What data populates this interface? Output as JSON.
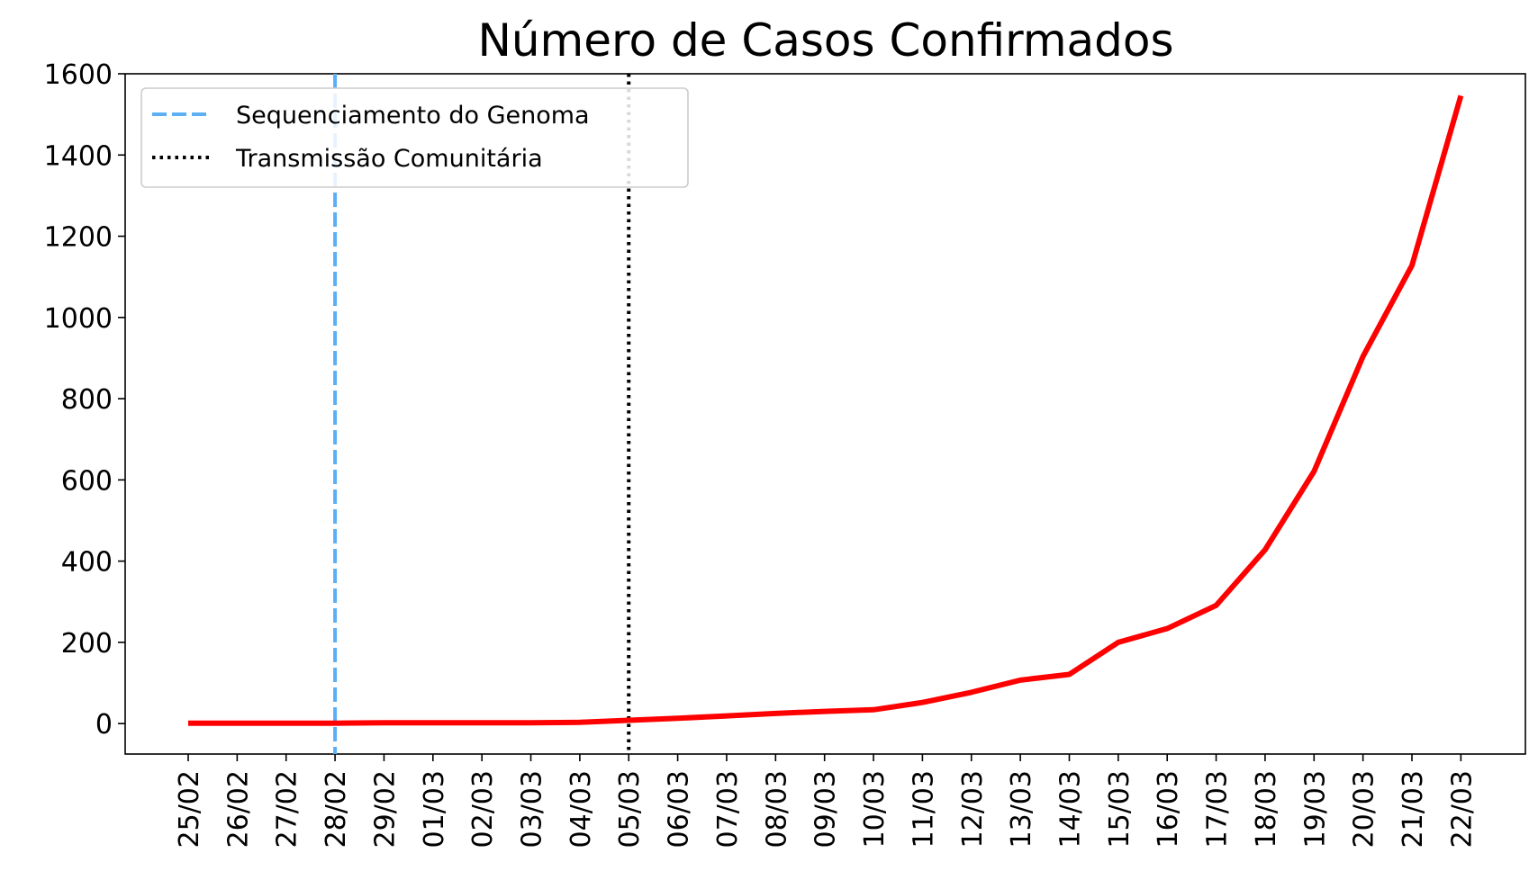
{
  "chart_data": {
    "type": "line",
    "title": "Número de Casos Confirmados",
    "xlabel": "",
    "ylabel": "",
    "categories": [
      "25/02",
      "26/02",
      "27/02",
      "28/02",
      "29/02",
      "01/03",
      "02/03",
      "03/03",
      "04/03",
      "05/03",
      "06/03",
      "07/03",
      "08/03",
      "09/03",
      "10/03",
      "11/03",
      "12/03",
      "13/03",
      "14/03",
      "15/03",
      "16/03",
      "17/03",
      "18/03",
      "19/03",
      "20/03",
      "21/03",
      "22/03"
    ],
    "series": [
      {
        "name": "",
        "color": "#ff0000",
        "values": [
          1,
          1,
          1,
          1,
          2,
          2,
          2,
          2,
          3,
          8,
          13,
          19,
          25,
          30,
          34,
          52,
          77,
          107,
          121,
          200,
          234,
          291,
          428,
          621,
          904,
          1128,
          1546
        ]
      }
    ],
    "vlines": [
      {
        "label": "Sequenciamento do Genoma",
        "at": "28/02",
        "color": "#5aaff5",
        "style": "dashed"
      },
      {
        "label": "Transmissão Comunitária",
        "at": "05/03",
        "color": "#000000",
        "style": "dotted"
      }
    ],
    "yticks": [
      0,
      200,
      400,
      600,
      800,
      1000,
      1200,
      1400,
      1600
    ],
    "ylim": [
      -75,
      1600
    ],
    "legend_position": "top-left",
    "grid": false
  }
}
